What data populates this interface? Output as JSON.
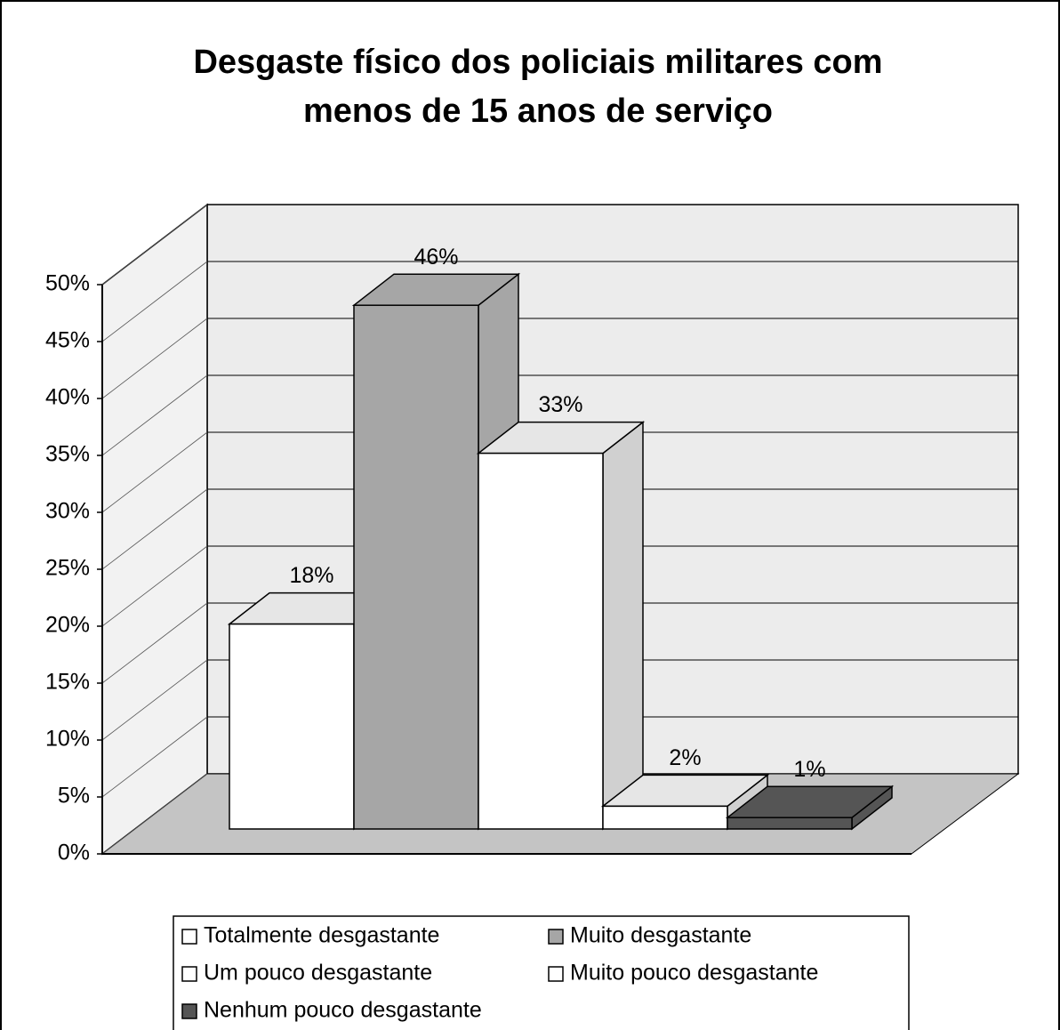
{
  "chart_data": {
    "type": "bar3d",
    "title": [
      "Desgaste físico dos policiais militares com",
      "menos de 15 anos de serviço"
    ],
    "series": [
      {
        "name": "Totalmente desgastante",
        "color": "#ffffff",
        "values": [
          18
        ],
        "value_labels": [
          "18%"
        ]
      },
      {
        "name": "Muito desgastante",
        "color": "#a6a6a6",
        "values": [
          46
        ],
        "value_labels": [
          "46%"
        ]
      },
      {
        "name": "Um pouco desgastante",
        "color": "#ffffff",
        "values": [
          33
        ],
        "value_labels": [
          "33%"
        ]
      },
      {
        "name": "Muito pouco desgastante",
        "color": "#ffffff",
        "values": [
          2
        ],
        "value_labels": [
          "2%"
        ]
      },
      {
        "name": "Nenhum pouco desgastante",
        "color": "#555555",
        "values": [
          1
        ],
        "value_labels": [
          "1%"
        ]
      }
    ],
    "ylim": [
      0,
      50
    ],
    "yticks": [
      {
        "value": 0,
        "label": "0%"
      },
      {
        "value": 5,
        "label": "5%"
      },
      {
        "value": 10,
        "label": "10%"
      },
      {
        "value": 15,
        "label": "15%"
      },
      {
        "value": 20,
        "label": "20%"
      },
      {
        "value": 25,
        "label": "25%"
      },
      {
        "value": 30,
        "label": "30%"
      },
      {
        "value": 35,
        "label": "35%"
      },
      {
        "value": 40,
        "label": "40%"
      },
      {
        "value": 45,
        "label": "45%"
      },
      {
        "value": 50,
        "label": "50%"
      }
    ],
    "grid": true,
    "legend": "bottom"
  }
}
